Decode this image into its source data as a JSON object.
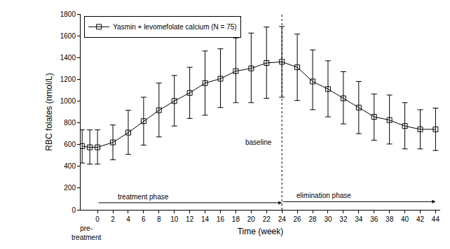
{
  "chart_data": {
    "type": "line",
    "xlabel": "Time (week)",
    "ylabel": "RBC folates (nmol/L)",
    "x": [
      -2,
      -1,
      0,
      2,
      4,
      6,
      8,
      10,
      12,
      14,
      16,
      18,
      20,
      22,
      24,
      26,
      28,
      30,
      32,
      34,
      36,
      38,
      40,
      42,
      44
    ],
    "series": [
      {
        "name": "Yasmin + levomefolate calcium (N = 75)",
        "color": "#000000",
        "marker": "square-open",
        "line_style": "solid",
        "values": [
          585,
          575,
          575,
          620,
          710,
          815,
          915,
          1000,
          1075,
          1165,
          1205,
          1275,
          1300,
          1350,
          1360,
          1310,
          1180,
          1110,
          1025,
          940,
          855,
          825,
          770,
          740,
          740
        ],
        "error_plus": [
          150,
          160,
          160,
          160,
          205,
          220,
          250,
          235,
          235,
          295,
          275,
          305,
          325,
          330,
          325,
          305,
          290,
          260,
          245,
          240,
          210,
          230,
          215,
          180,
          195
        ],
        "error_minus": [
          155,
          155,
          155,
          160,
          200,
          220,
          245,
          230,
          235,
          295,
          265,
          290,
          315,
          325,
          325,
          305,
          260,
          255,
          235,
          240,
          215,
          220,
          210,
          180,
          195
        ]
      }
    ],
    "xlim": [
      -2.2,
      44.6
    ],
    "xticks": [
      0,
      2,
      4,
      6,
      8,
      10,
      12,
      14,
      16,
      18,
      20,
      22,
      24,
      26,
      28,
      30,
      32,
      34,
      36,
      38,
      40,
      42,
      44
    ],
    "ylim": [
      0,
      1800
    ],
    "yticks": [
      0,
      200,
      400,
      600,
      800,
      1000,
      1200,
      1400,
      1600,
      1800
    ],
    "grid": false,
    "legend": "upper left",
    "reference_line": {
      "x": 24
    },
    "phases": [
      {
        "label": "treatment phase",
        "start": 0,
        "end": 24,
        "y": 65,
        "label_x": 6
      },
      {
        "label": "elimination phase",
        "start": 24,
        "end": 44,
        "y": 75,
        "label_x": 29.5
      }
    ],
    "annotations": [
      {
        "text": "baseline",
        "x": 21,
        "y": 620
      },
      {
        "text": "pre-\ntreatment",
        "x": -1.5,
        "y": 0
      }
    ]
  }
}
